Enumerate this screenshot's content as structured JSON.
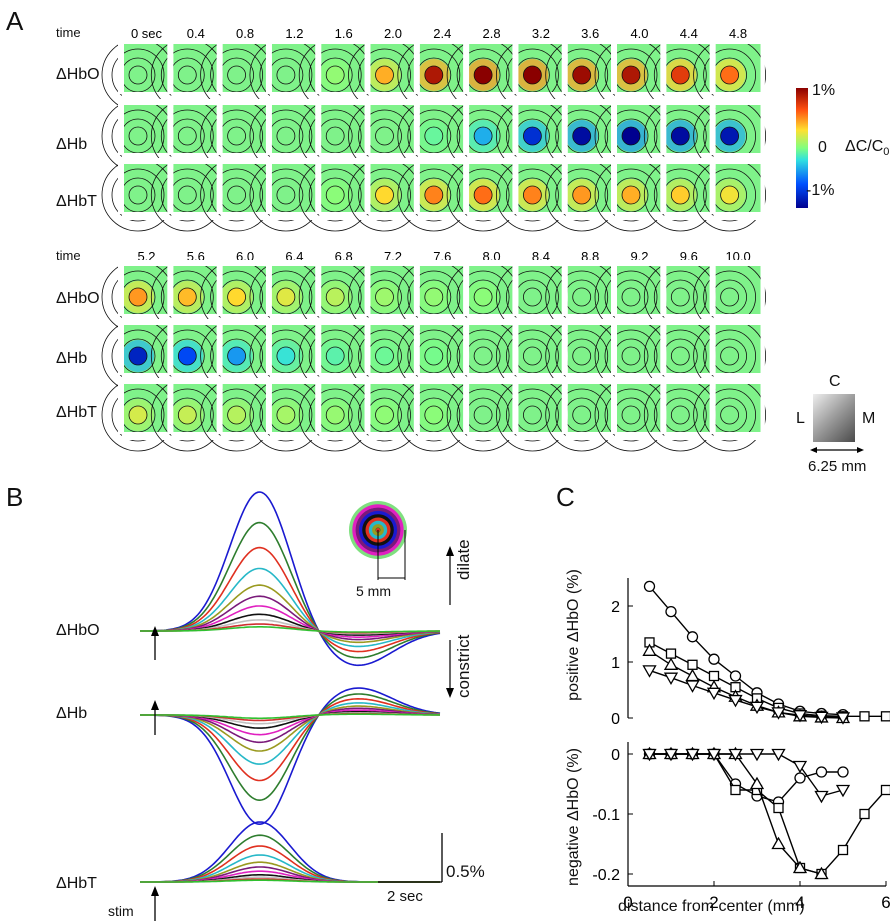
{
  "panelA": {
    "letter": "A",
    "time_label": "time",
    "times_top": [
      "0 sec",
      "0.4",
      "0.8",
      "1.2",
      "1.6",
      "2.0",
      "2.4",
      "2.8",
      "3.2",
      "3.6",
      "4.0",
      "4.4",
      "4.8"
    ],
    "times_bottom": [
      "5.2",
      "5.6",
      "6.0",
      "6.4",
      "6.8",
      "7.2",
      "7.6",
      "8.0",
      "8.4",
      "8.8",
      "9.2",
      "9.6",
      "10.0"
    ],
    "rows": [
      "ΔHbO",
      "ΔHb",
      "ΔHbT"
    ],
    "intensity": {
      "HbO": [
        0,
        0,
        0,
        0,
        0.05,
        0.45,
        0.9,
        1.0,
        1.0,
        0.95,
        0.9,
        0.75,
        0.6,
        0.5,
        0.42,
        0.35,
        0.25,
        0.15,
        0.08,
        0.05,
        0.03,
        0.02,
        0.01,
        0.0,
        0.0,
        0.0
      ],
      "Hb": [
        0,
        0,
        0,
        0,
        0,
        0,
        0.1,
        0.45,
        0.8,
        0.95,
        1.0,
        0.95,
        0.9,
        0.85,
        0.7,
        0.5,
        0.3,
        0.15,
        0.08,
        0.04,
        0.02,
        0.01,
        0,
        0,
        0,
        0
      ],
      "HbT": [
        0,
        0,
        0,
        0,
        0.03,
        0.35,
        0.55,
        0.6,
        0.55,
        0.5,
        0.45,
        0.38,
        0.3,
        0.22,
        0.18,
        0.14,
        0.1,
        0.06,
        0.04,
        0.03,
        0.02,
        0.01,
        0,
        0,
        0,
        0
      ]
    },
    "colorbar": {
      "max_label": "1%",
      "mid_label": "0",
      "min_label": "-1%",
      "quantity": "ΔC/C",
      "subscript": "0"
    },
    "orientation": {
      "top": "C",
      "left": "L",
      "right": "M",
      "scale": "6.25 mm"
    }
  },
  "panelB": {
    "letter": "B",
    "rows": [
      "ΔHbO",
      "ΔHb",
      "ΔHbT"
    ],
    "dilate": "dilate",
    "constrict": "constrict",
    "inset_scale": "5 mm",
    "scale_y": "0.5%",
    "scale_x": "2 sec",
    "stim": "stim",
    "colors": [
      "#1a1ad0",
      "#2e7d2e",
      "#e03020",
      "#27b8c8",
      "#9a9a20",
      "#7a1a7a",
      "#e020c0",
      "#111111",
      "#c0c0c0",
      "#d03030",
      "#30c030"
    ],
    "amplitudes": [
      1.0,
      0.78,
      0.6,
      0.45,
      0.33,
      0.25,
      0.18,
      0.12,
      0.08,
      0.05,
      0.03
    ]
  },
  "chart_data": [
    {
      "type": "line",
      "title": "",
      "ylabel": "positive ΔHbO (%)",
      "xlabel": "",
      "xlim": [
        0,
        6
      ],
      "ylim": [
        0,
        2.5
      ],
      "yticks": [
        "2",
        "1",
        "0"
      ],
      "series": [
        {
          "marker": "circle",
          "x": [
            0.5,
            1,
            1.5,
            2,
            2.5,
            3,
            3.5,
            4,
            4.5,
            5
          ],
          "y": [
            2.35,
            1.9,
            1.45,
            1.05,
            0.75,
            0.45,
            0.25,
            0.12,
            0.08,
            0.06
          ]
        },
        {
          "marker": "square",
          "x": [
            0.5,
            1,
            1.5,
            2,
            2.5,
            3,
            3.5,
            4,
            4.5,
            5,
            5.5,
            6
          ],
          "y": [
            1.35,
            1.15,
            0.95,
            0.75,
            0.55,
            0.35,
            0.18,
            0.08,
            0.04,
            0.03,
            0.03,
            0.03
          ]
        },
        {
          "marker": "triangle-up",
          "x": [
            0.5,
            1,
            1.5,
            2,
            2.5,
            3,
            3.5,
            4,
            4.5,
            5
          ],
          "y": [
            1.2,
            0.95,
            0.75,
            0.55,
            0.38,
            0.22,
            0.1,
            0.03,
            0.01,
            0.0
          ]
        },
        {
          "marker": "triangle-down",
          "x": [
            0.5,
            1,
            1.5,
            2,
            2.5,
            3,
            3.5,
            4,
            4.5,
            5
          ],
          "y": [
            0.85,
            0.72,
            0.58,
            0.45,
            0.32,
            0.2,
            0.1,
            0.05,
            0.02,
            0.01
          ]
        }
      ]
    },
    {
      "type": "line",
      "title": "",
      "ylabel": "negative ΔHbO (%)",
      "xlabel": "distance from center (mm)",
      "xlim": [
        0,
        6
      ],
      "ylim": [
        -0.22,
        0.02
      ],
      "yticks": [
        "0",
        "-0.1",
        "-0.2"
      ],
      "xticks": [
        "0",
        "2",
        "4",
        "6"
      ],
      "series": [
        {
          "marker": "circle",
          "x": [
            0.5,
            1,
            1.5,
            2,
            2.5,
            3,
            3.5,
            4,
            4.5,
            5
          ],
          "y": [
            0,
            0,
            0,
            0,
            -0.05,
            -0.07,
            -0.08,
            -0.04,
            -0.03,
            -0.03
          ]
        },
        {
          "marker": "square",
          "x": [
            0.5,
            1,
            1.5,
            2,
            2.5,
            3,
            3.5,
            4,
            4.5,
            5,
            5.5,
            6
          ],
          "y": [
            0,
            0,
            0,
            0,
            -0.06,
            -0.06,
            -0.09,
            -0.19,
            -0.2,
            -0.16,
            -0.1,
            -0.06
          ]
        },
        {
          "marker": "triangle-up",
          "x": [
            0.5,
            1,
            1.5,
            2,
            2.5,
            3,
            3.5,
            4,
            4.5
          ],
          "y": [
            0,
            0,
            0,
            0,
            0,
            -0.05,
            -0.15,
            -0.19,
            -0.2
          ]
        },
        {
          "marker": "triangle-down",
          "x": [
            0.5,
            1,
            1.5,
            2,
            2.5,
            3,
            3.5,
            4,
            4.5,
            5
          ],
          "y": [
            0,
            0,
            0,
            0,
            0,
            0,
            0,
            -0.02,
            -0.07,
            -0.06
          ]
        }
      ]
    }
  ],
  "panelC": {
    "letter": "C"
  }
}
